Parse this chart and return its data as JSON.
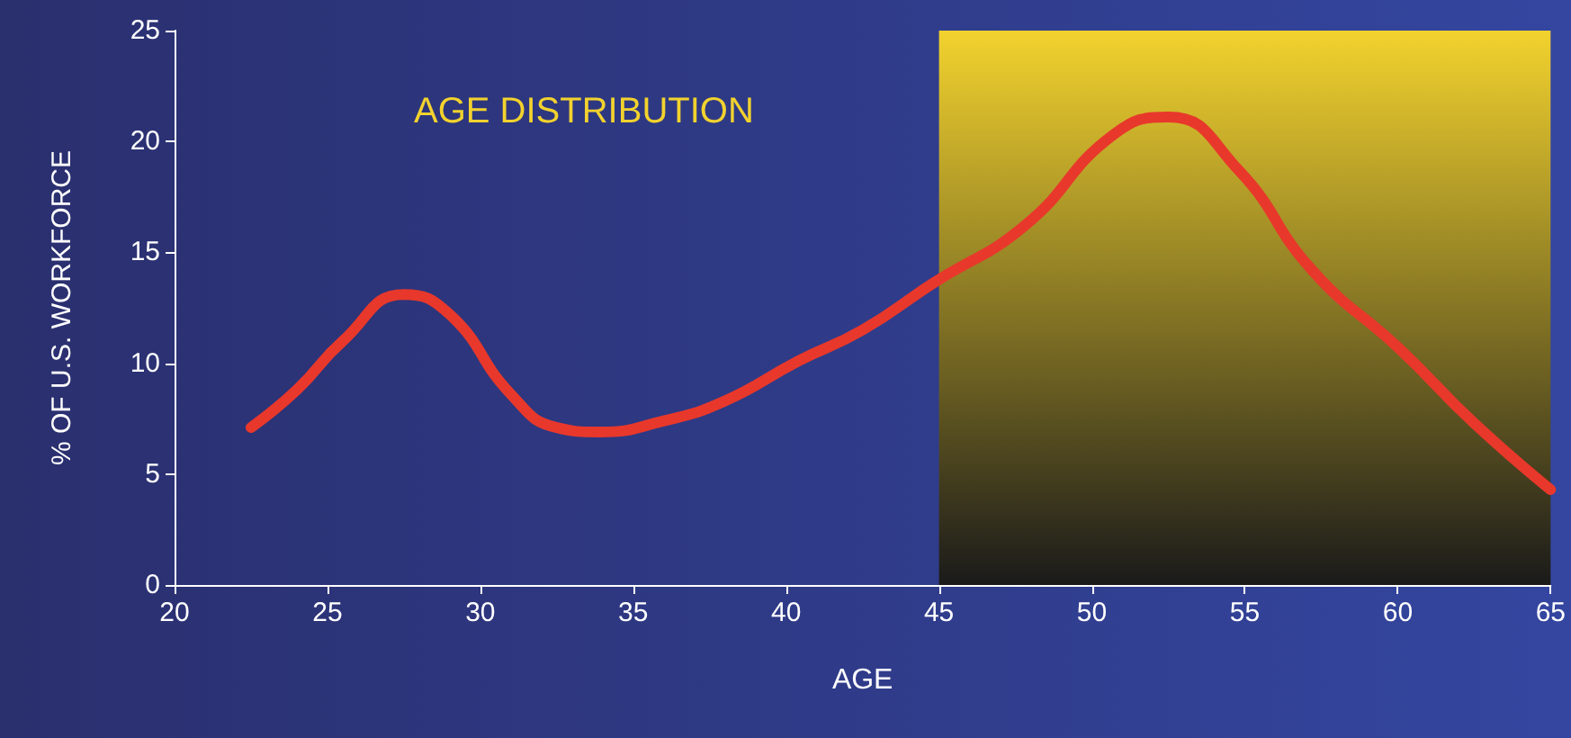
{
  "chart_data": {
    "type": "line",
    "xlabel": "AGE",
    "ylabel": "% OF U.S. WORKFORCE",
    "annotations": [
      "AGE DISTRIBUTION"
    ],
    "x": [
      22.5,
      24,
      25.5,
      27.5,
      29,
      31,
      32.5,
      33.9,
      36,
      38,
      40.4,
      42.5,
      44.8,
      47.8,
      50.7,
      52.5,
      54.8,
      57.2,
      60.1,
      62.5,
      65
    ],
    "series": [
      {
        "color": "#e8382b",
        "values": [
          7.1,
          8.8,
          11,
          13.1,
          12.2,
          8.6,
          7.1,
          6.9,
          7.4,
          8.3,
          10.1,
          11.5,
          13.6,
          16.2,
          20.3,
          21.1,
          18.7,
          14.2,
          10.6,
          7.3,
          4.3
        ]
      }
    ],
    "xlim": [
      20,
      65
    ],
    "xticks": [
      20,
      25,
      30,
      35,
      40,
      45,
      50,
      55,
      60,
      65
    ],
    "ylim": [
      0,
      25
    ],
    "yticks": [
      0,
      5,
      10,
      15,
      20,
      25
    ],
    "bands": [
      {
        "axis": "x",
        "from": 45,
        "to": 65,
        "color": "#f2d22e"
      }
    ],
    "grid": false,
    "marker": "none",
    "line_style": "solid"
  }
}
